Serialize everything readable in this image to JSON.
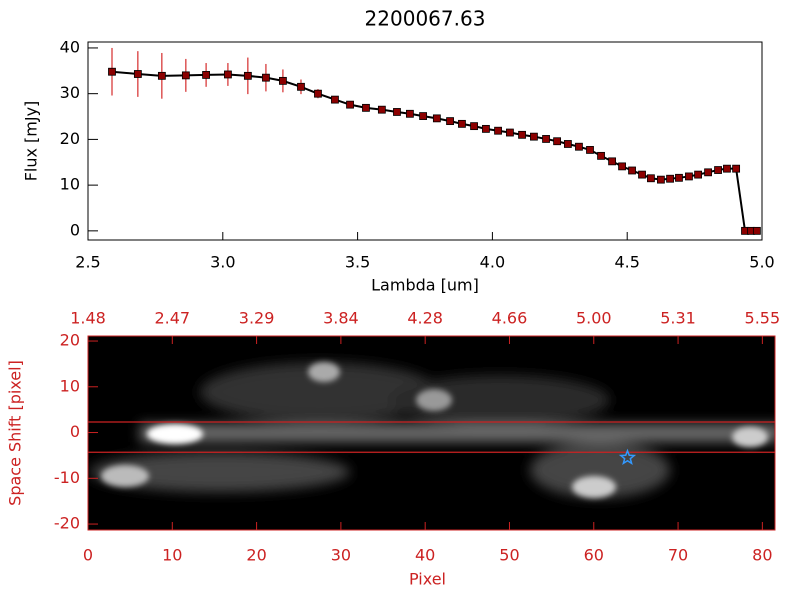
{
  "chart_data": [
    {
      "type": "line",
      "title": "2200067.63",
      "x_label": "Lambda [um]",
      "y_label": "Flux [mJy]",
      "x": [
        2.589,
        2.685,
        2.774,
        2.863,
        2.938,
        3.019,
        3.093,
        3.16,
        3.223,
        3.29,
        3.353,
        3.416,
        3.472,
        3.531,
        3.59,
        3.646,
        3.694,
        3.743,
        3.794,
        3.843,
        3.887,
        3.932,
        3.976,
        4.021,
        4.065,
        4.11,
        4.154,
        4.199,
        4.24,
        4.28,
        4.321,
        4.362,
        4.403,
        4.444,
        4.481,
        4.518,
        4.555,
        4.588,
        4.625,
        4.659,
        4.692,
        4.729,
        4.763,
        4.8,
        4.837,
        4.87,
        4.904,
        4.937,
        4.959,
        4.981
      ],
      "series": [
        {
          "color": "#000000",
          "marker_color": "#8b0000",
          "error_color": "#cc0000",
          "values": [
            34.8,
            34.3,
            33.9,
            34.0,
            34.1,
            34.2,
            33.9,
            33.5,
            32.8,
            31.5,
            30.0,
            28.7,
            27.6,
            26.9,
            26.5,
            26.0,
            25.6,
            25.1,
            24.6,
            24.0,
            23.4,
            22.9,
            22.3,
            21.9,
            21.5,
            21.0,
            20.6,
            20.1,
            19.6,
            19.0,
            18.4,
            17.7,
            16.4,
            15.2,
            14.1,
            13.2,
            12.3,
            11.5,
            11.2,
            11.4,
            11.6,
            11.9,
            12.3,
            12.8,
            13.3,
            13.6,
            13.6,
            0,
            0,
            0
          ],
          "errors": [
            5.2,
            5.0,
            5.0,
            3.6,
            2.6,
            2.5,
            4.0,
            3.0,
            2.5,
            1.6,
            1.0,
            0.6,
            0.5,
            0.5,
            0.5,
            0.5,
            0.5,
            0.5,
            0.5,
            0.5,
            0.5,
            0.5,
            0.5,
            0.5,
            0.5,
            0.5,
            0.5,
            0.5,
            0.5,
            0.5,
            0.5,
            0.5,
            0.5,
            0.5,
            0.5,
            0.5,
            0.5,
            0.5,
            0.5,
            0.5,
            0.5,
            0.5,
            0.5,
            0.5,
            0.5,
            0.5,
            0.5,
            0.5,
            0.5,
            0.5
          ]
        }
      ],
      "xlim": [
        2.5,
        5.0
      ],
      "xticks": [
        2.5,
        {
          "value": 3,
          "label": "3.0"
        },
        3.5,
        {
          "value": 4,
          "label": "4.0"
        },
        4.5,
        {
          "value": 5,
          "label": "5.0"
        }
      ],
      "ylim": [
        -2,
        41.3
      ],
      "yticks": [
        0,
        10,
        20,
        30,
        40
      ]
    },
    {
      "type": "image",
      "x_label": "Pixel",
      "y_label": "Space Shift [pixel]",
      "color": "#cc2222",
      "xlim": [
        0,
        81.5
      ],
      "xticks": [
        0,
        10,
        20,
        30,
        40,
        50,
        60,
        70,
        80
      ],
      "x2ticks": [
        {
          "value": 0,
          "label": "1.48"
        },
        {
          "value": 10,
          "label": "2.47"
        },
        {
          "value": 20,
          "label": "3.29"
        },
        {
          "value": 30,
          "label": "3.84"
        },
        {
          "value": 40,
          "label": "4.28"
        },
        {
          "value": 50,
          "label": "4.66"
        },
        {
          "value": 60,
          "label": "5.00"
        },
        {
          "value": 70,
          "label": "5.31"
        },
        {
          "value": 80,
          "label": "5.55"
        }
      ],
      "ylim": [
        -21.3,
        21.1
      ],
      "yticks": [
        -20,
        -10,
        0,
        10,
        20
      ],
      "aperture": [
        2.3,
        -4.3
      ],
      "target": {
        "x": 64,
        "y": -5.5,
        "color": "#3399ff"
      }
    }
  ]
}
